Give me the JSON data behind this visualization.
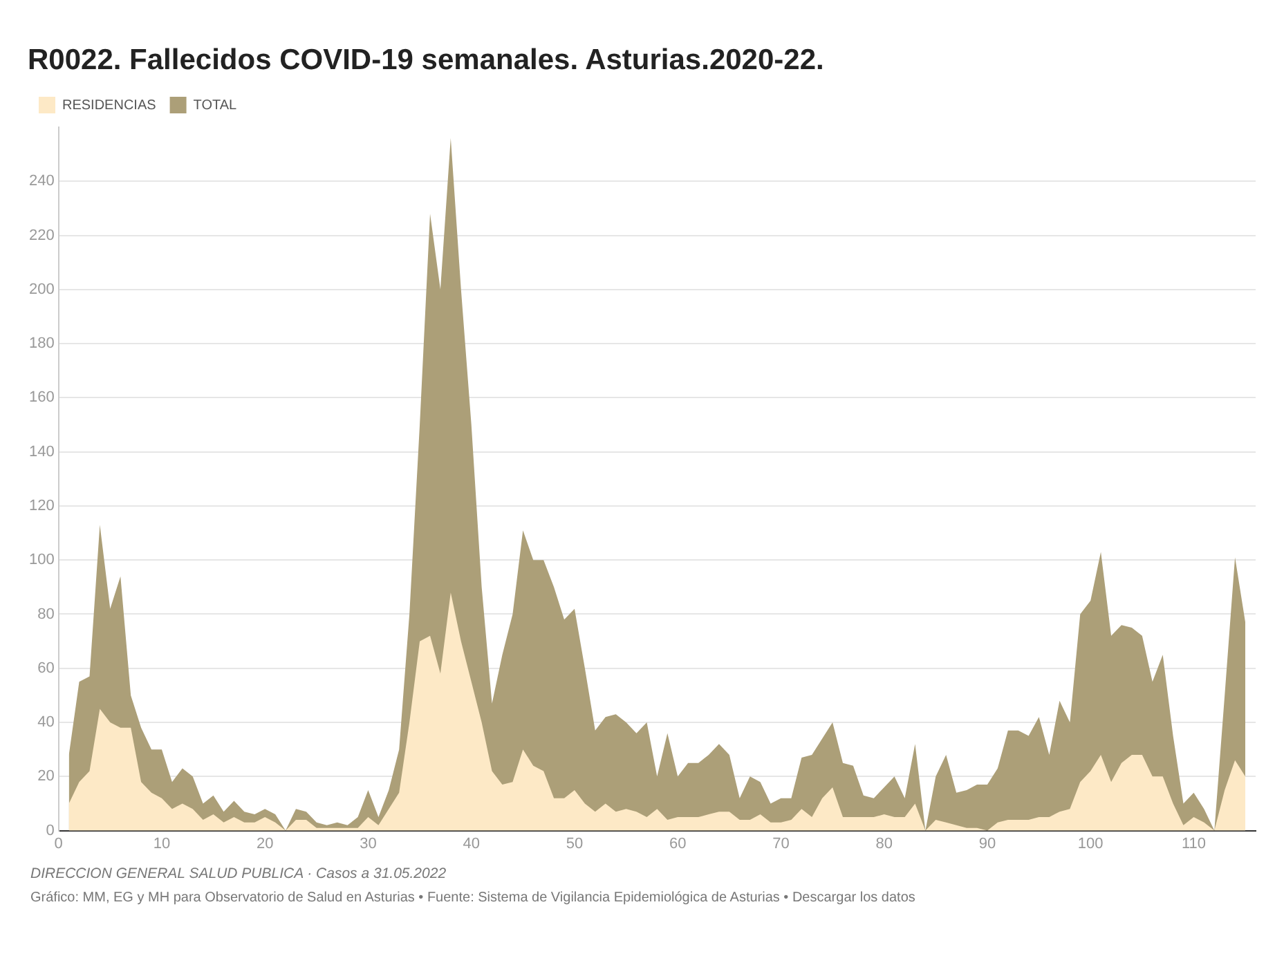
{
  "chart_data": {
    "type": "area",
    "title": "R0022. Fallecidos COVID-19 semanales. Asturias.2020-22.",
    "x": [
      1,
      2,
      3,
      4,
      5,
      6,
      7,
      8,
      9,
      10,
      11,
      12,
      13,
      14,
      15,
      16,
      17,
      18,
      19,
      20,
      21,
      22,
      23,
      24,
      25,
      26,
      27,
      28,
      29,
      30,
      31,
      32,
      33,
      34,
      35,
      36,
      37,
      38,
      39,
      40,
      41,
      42,
      43,
      44,
      45,
      46,
      47,
      48,
      49,
      50,
      51,
      52,
      53,
      54,
      55,
      56,
      57,
      58,
      59,
      60,
      61,
      62,
      63,
      64,
      65,
      66,
      67,
      68,
      69,
      70,
      71,
      72,
      73,
      74,
      75,
      76,
      77,
      78,
      79,
      80,
      81,
      82,
      83,
      84,
      85,
      86,
      87,
      88,
      89,
      90,
      91,
      92,
      93,
      94,
      95,
      96,
      97,
      98,
      99,
      100,
      101,
      102,
      103,
      104,
      105,
      106,
      107,
      108,
      109,
      110,
      111,
      112,
      113,
      114,
      115
    ],
    "series": [
      {
        "name": "RESIDENCIAS",
        "color": "#fde9c6",
        "values": [
          10,
          18,
          22,
          45,
          40,
          38,
          38,
          18,
          14,
          12,
          8,
          10,
          8,
          4,
          6,
          3,
          5,
          3,
          3,
          5,
          3,
          0,
          4,
          4,
          1,
          1,
          1,
          1,
          1,
          5,
          2,
          8,
          14,
          40,
          70,
          72,
          58,
          88,
          70,
          55,
          40,
          22,
          17,
          18,
          30,
          24,
          22,
          12,
          12,
          15,
          10,
          7,
          10,
          7,
          8,
          7,
          5,
          8,
          4,
          5,
          5,
          5,
          6,
          7,
          7,
          4,
          4,
          6,
          3,
          3,
          4,
          8,
          5,
          12,
          16,
          5,
          5,
          5,
          5,
          6,
          5,
          5,
          10,
          0,
          4,
          3,
          2,
          1,
          1,
          0,
          3,
          4,
          4,
          4,
          5,
          5,
          7,
          8,
          18,
          22,
          28,
          18,
          25,
          28,
          28,
          20,
          20,
          10,
          2,
          5,
          3,
          0,
          15,
          26,
          20
        ]
      },
      {
        "name": "TOTAL",
        "color": "#ac9f78",
        "values": [
          28,
          55,
          57,
          113,
          82,
          94,
          50,
          38,
          30,
          30,
          18,
          23,
          20,
          10,
          13,
          7,
          11,
          7,
          6,
          8,
          6,
          0,
          8,
          7,
          3,
          2,
          3,
          2,
          5,
          15,
          5,
          15,
          30,
          80,
          150,
          228,
          200,
          256,
          200,
          150,
          90,
          47,
          65,
          80,
          111,
          100,
          100,
          90,
          78,
          82,
          60,
          37,
          42,
          43,
          40,
          36,
          40,
          20,
          36,
          20,
          25,
          25,
          28,
          32,
          28,
          12,
          20,
          18,
          10,
          12,
          12,
          27,
          28,
          34,
          40,
          25,
          24,
          13,
          12,
          16,
          20,
          12,
          32,
          0,
          20,
          28,
          14,
          15,
          17,
          17,
          23,
          37,
          37,
          35,
          42,
          28,
          48,
          40,
          80,
          85,
          103,
          72,
          76,
          75,
          72,
          55,
          65,
          35,
          10,
          14,
          8,
          0,
          50,
          101,
          77
        ]
      }
    ],
    "xlim": [
      0,
      116
    ],
    "xticks": [
      0,
      10,
      20,
      30,
      40,
      50,
      60,
      70,
      80,
      90,
      100,
      110
    ],
    "ylim": [
      0,
      260
    ],
    "yticks": [
      0,
      20,
      40,
      60,
      80,
      100,
      120,
      140,
      160,
      180,
      200,
      220,
      240
    ],
    "grid": "y",
    "legend": "top left",
    "annotations": [
      "DIRECCION GENERAL SALUD PUBLICA · Casos a 31.05.2022",
      "Gráfico: MM, EG y MH para Observatorio de Salud en Asturias • Fuente: Sistema de Vigilancia Epidemiológica de Asturias • Descargar los datos"
    ]
  }
}
